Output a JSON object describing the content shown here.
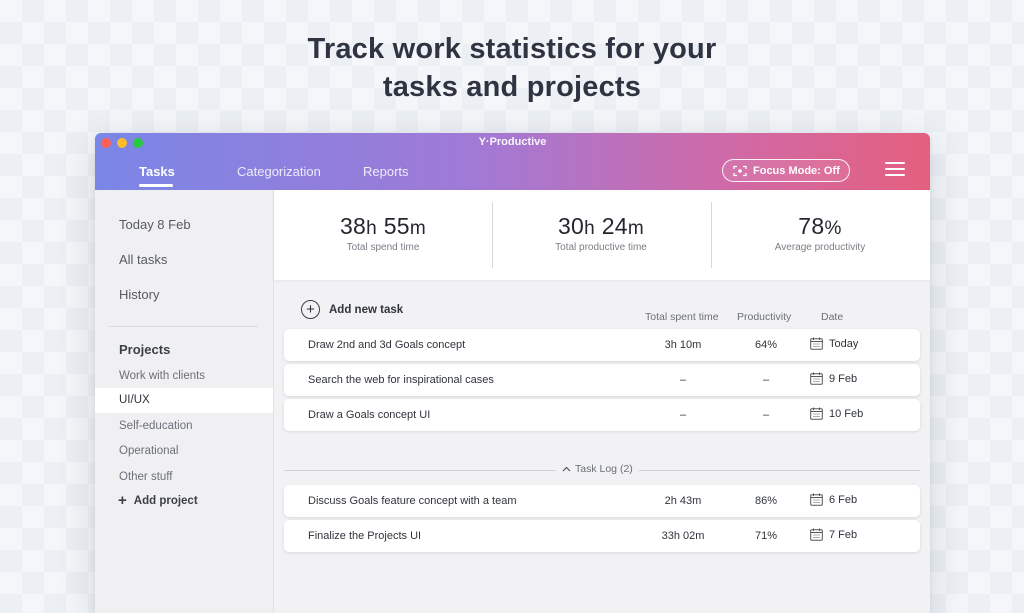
{
  "headline": {
    "line1": "Track work statistics for your",
    "line2": "tasks and projects"
  },
  "app": {
    "title": "Y·Productive",
    "tabs": [
      {
        "label": "Tasks",
        "active": true
      },
      {
        "label": "Categorization",
        "active": false
      },
      {
        "label": "Reports",
        "active": false
      }
    ],
    "focus_mode_label": "Focus Mode: Off",
    "menu_icon": "hamburger-menu-icon",
    "gradient_colors": [
      "#7a86e6",
      "#a07ad6",
      "#cf6aa8",
      "#e4607f"
    ]
  },
  "sidebar": {
    "items": [
      {
        "label": "Today 8 Feb"
      },
      {
        "label": "All tasks"
      },
      {
        "label": "History"
      }
    ],
    "projects_heading": "Projects",
    "projects": [
      {
        "label": "Work with clients",
        "selected": false
      },
      {
        "label": "UI/UX",
        "selected": true
      },
      {
        "label": "Self-education",
        "selected": false
      },
      {
        "label": "Operational",
        "selected": false
      },
      {
        "label": "Other stuff",
        "selected": false
      }
    ],
    "add_project_label": "Add project"
  },
  "stats": [
    {
      "hours": "38",
      "h_unit": "h",
      "minutes": "55",
      "m_unit": "m",
      "label": "Total spend time"
    },
    {
      "hours": "30",
      "h_unit": "h",
      "minutes": "24",
      "m_unit": "m",
      "label": "Total productive time"
    },
    {
      "value": "78",
      "unit": "%",
      "label": "Average productivity"
    }
  ],
  "tasks": {
    "add_label": "Add new task",
    "columns": {
      "spent": "Total spent time",
      "productivity": "Productivity",
      "date": "Date"
    },
    "rows": [
      {
        "name": "Draw 2nd and 3d Goals concept",
        "spent": "3h 10m",
        "productivity": "64%",
        "date": "Today"
      },
      {
        "name": "Search the web for inspirational cases",
        "spent": "–",
        "productivity": "–",
        "date": "9 Feb"
      },
      {
        "name": "Draw a Goals concept UI",
        "spent": "–",
        "productivity": "–",
        "date": "10 Feb"
      }
    ],
    "log_label": "Task Log (2)",
    "log_rows": [
      {
        "name": "Discuss Goals feature concept with a team",
        "spent": "2h 43m",
        "productivity": "86%",
        "date": "6 Feb"
      },
      {
        "name": "Finalize the Projects UI",
        "spent": "33h 02m",
        "productivity": "71%",
        "date": "7 Feb"
      }
    ]
  }
}
